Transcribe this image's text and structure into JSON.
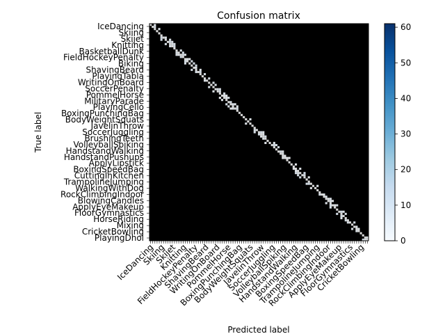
{
  "chart_data": {
    "type": "heatmap",
    "title": "Confusion matrix",
    "xlabel": "Predicted label",
    "ylabel": "True label",
    "colormap": "Blues",
    "colorbar": {
      "min": 0,
      "max": 61,
      "ticks": [
        0,
        10,
        20,
        30,
        40,
        50,
        60
      ]
    },
    "n_classes": 101,
    "y_tick_labels_legible": [
      "IceDancing",
      "Skiing",
      "Skijet",
      "Knitting",
      "BasketballDunk",
      "FieldHockeyPenalty",
      "Biking",
      "ShavingBeard",
      "PlayingTabla",
      "WritingOnBoard",
      "SoccerPenalty",
      "PommelHorse",
      "MilitaryParade",
      "PlayingCello",
      "BoxingPunchingBag",
      "BodyWeightSquats",
      "JavelinThrow",
      "SoccerJuggling",
      "BrushingTeeth",
      "VolleyballSpiking",
      "HandstandWalking",
      "HandstandPushups",
      "ApplyLipstick",
      "BoxingSpeedBag",
      "CuttingInKitchen",
      "TrampolineJumping",
      "WalkingWithDog",
      "RockClimbingIndoor",
      "BlowingCandles",
      "ApplyEyeMakeup",
      "FloorGymnastics",
      "HorseRiding",
      "Mixing",
      "CricketBowling",
      "PlayingDhol"
    ],
    "x_tick_labels_legible": [
      "IceDancing",
      "Skiing",
      "Skijet",
      "Knitting",
      "FieldHockeyPenalty",
      "ShavingBeard",
      "WritingOnBoard",
      "PommelHorse",
      "BoxingPunchingBag",
      "BodyWeightSquats",
      "JavelinThrow",
      "SoccerJuggling",
      "VolleyballSpiking",
      "HandstandWalking",
      "BoxingSpeedBag",
      "TrampolineJumping",
      "RockClimbingIndoor",
      "ApplyEyeMakeup",
      "FloorGymnastics",
      "CricketBowling"
    ],
    "diagonal_range": [
      10,
      61
    ],
    "off_diagonal_range": [
      0,
      6
    ]
  }
}
